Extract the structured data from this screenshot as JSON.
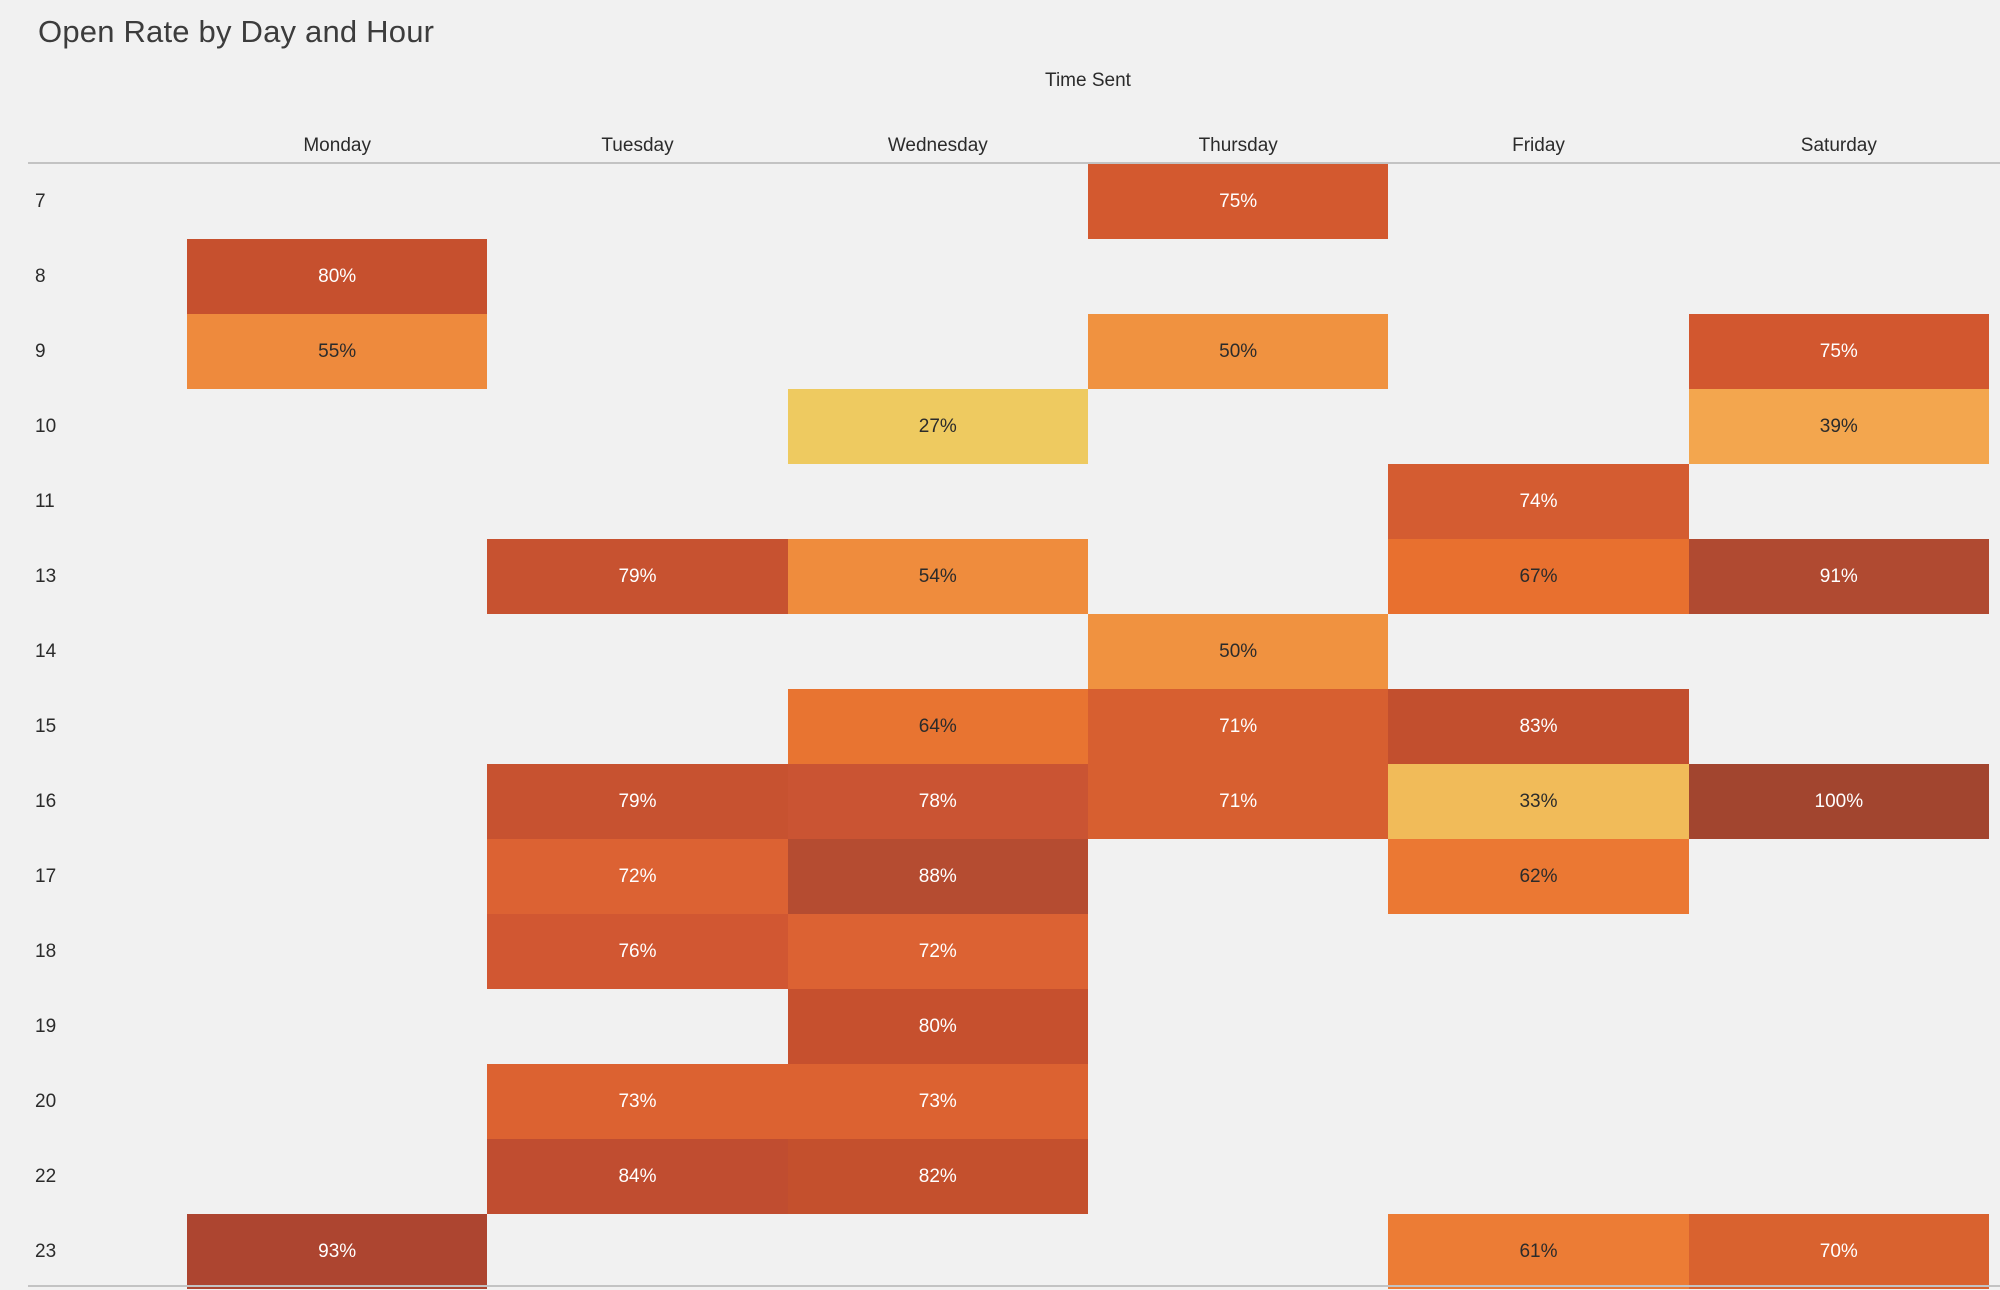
{
  "title": "Open Rate by Day and Hour",
  "chart_data": {
    "type": "heatmap",
    "title": "Open Rate by Day and Hour",
    "x_axis_title": "Time Sent",
    "columns": [
      "Monday",
      "Tuesday",
      "Wednesday",
      "Thursday",
      "Friday",
      "Saturday"
    ],
    "rows": [
      "7",
      "8",
      "9",
      "10",
      "11",
      "13",
      "14",
      "15",
      "16",
      "17",
      "18",
      "19",
      "20",
      "22",
      "23"
    ],
    "value_unit": "percent",
    "legend": "none",
    "background_color": "#f1f1f1",
    "color_scale": {
      "low_value": 27,
      "low_color": "#eeca60",
      "high_value": 100,
      "high_color": "#a2452f"
    },
    "cells": [
      {
        "row": "7",
        "col": "Thursday",
        "value": "75%",
        "bg": "#d3592f",
        "fg": "#ffffff"
      },
      {
        "row": "8",
        "col": "Monday",
        "value": "80%",
        "bg": "#c6502e",
        "fg": "#ffffff"
      },
      {
        "row": "9",
        "col": "Monday",
        "value": "55%",
        "bg": "#ee8a3d",
        "fg": "#2b2b2b"
      },
      {
        "row": "9",
        "col": "Thursday",
        "value": "50%",
        "bg": "#f09240",
        "fg": "#2b2b2b"
      },
      {
        "row": "9",
        "col": "Saturday",
        "value": "75%",
        "bg": "#d2572f",
        "fg": "#ffffff"
      },
      {
        "row": "10",
        "col": "Wednesday",
        "value": "27%",
        "bg": "#eeca60",
        "fg": "#2b2b2b"
      },
      {
        "row": "10",
        "col": "Saturday",
        "value": "39%",
        "bg": "#f3a64e",
        "fg": "#2b2b2b"
      },
      {
        "row": "11",
        "col": "Friday",
        "value": "74%",
        "bg": "#d45c31",
        "fg": "#ffffff"
      },
      {
        "row": "13",
        "col": "Tuesday",
        "value": "79%",
        "bg": "#c75230",
        "fg": "#ffffff"
      },
      {
        "row": "13",
        "col": "Wednesday",
        "value": "54%",
        "bg": "#ef8c3d",
        "fg": "#2b2b2b"
      },
      {
        "row": "13",
        "col": "Friday",
        "value": "67%",
        "bg": "#e8702f",
        "fg": "#2b2b2b"
      },
      {
        "row": "13",
        "col": "Saturday",
        "value": "91%",
        "bg": "#b04a31",
        "fg": "#ffffff"
      },
      {
        "row": "14",
        "col": "Thursday",
        "value": "50%",
        "bg": "#f09240",
        "fg": "#2b2b2b"
      },
      {
        "row": "15",
        "col": "Wednesday",
        "value": "64%",
        "bg": "#e87431",
        "fg": "#2b2b2b"
      },
      {
        "row": "15",
        "col": "Thursday",
        "value": "71%",
        "bg": "#d75f30",
        "fg": "#ffffff"
      },
      {
        "row": "15",
        "col": "Friday",
        "value": "83%",
        "bg": "#c24f2e",
        "fg": "#ffffff"
      },
      {
        "row": "16",
        "col": "Tuesday",
        "value": "79%",
        "bg": "#c75230",
        "fg": "#ffffff"
      },
      {
        "row": "16",
        "col": "Wednesday",
        "value": "78%",
        "bg": "#ca5433",
        "fg": "#ffffff"
      },
      {
        "row": "16",
        "col": "Thursday",
        "value": "71%",
        "bg": "#d75f30",
        "fg": "#ffffff"
      },
      {
        "row": "16",
        "col": "Friday",
        "value": "33%",
        "bg": "#f1bb59",
        "fg": "#2b2b2b"
      },
      {
        "row": "16",
        "col": "Saturday",
        "value": "100%",
        "bg": "#a2452f",
        "fg": "#ffffff"
      },
      {
        "row": "17",
        "col": "Tuesday",
        "value": "72%",
        "bg": "#dc6233",
        "fg": "#ffffff"
      },
      {
        "row": "17",
        "col": "Wednesday",
        "value": "88%",
        "bg": "#b54c31",
        "fg": "#ffffff"
      },
      {
        "row": "17",
        "col": "Friday",
        "value": "62%",
        "bg": "#eb7833",
        "fg": "#2b2b2b"
      },
      {
        "row": "18",
        "col": "Tuesday",
        "value": "76%",
        "bg": "#d15732",
        "fg": "#ffffff"
      },
      {
        "row": "18",
        "col": "Wednesday",
        "value": "72%",
        "bg": "#dc6233",
        "fg": "#ffffff"
      },
      {
        "row": "19",
        "col": "Wednesday",
        "value": "80%",
        "bg": "#c6502e",
        "fg": "#ffffff"
      },
      {
        "row": "20",
        "col": "Tuesday",
        "value": "73%",
        "bg": "#dc6231",
        "fg": "#ffffff"
      },
      {
        "row": "20",
        "col": "Wednesday",
        "value": "73%",
        "bg": "#dc6231",
        "fg": "#ffffff"
      },
      {
        "row": "22",
        "col": "Tuesday",
        "value": "84%",
        "bg": "#c04d30",
        "fg": "#ffffff"
      },
      {
        "row": "22",
        "col": "Wednesday",
        "value": "82%",
        "bg": "#c4502d",
        "fg": "#ffffff"
      },
      {
        "row": "23",
        "col": "Monday",
        "value": "93%",
        "bg": "#ad4530",
        "fg": "#ffffff"
      },
      {
        "row": "23",
        "col": "Friday",
        "value": "61%",
        "bg": "#ec7c35",
        "fg": "#2b2b2b"
      },
      {
        "row": "23",
        "col": "Saturday",
        "value": "70%",
        "bg": "#d9622f",
        "fg": "#ffffff"
      }
    ]
  }
}
